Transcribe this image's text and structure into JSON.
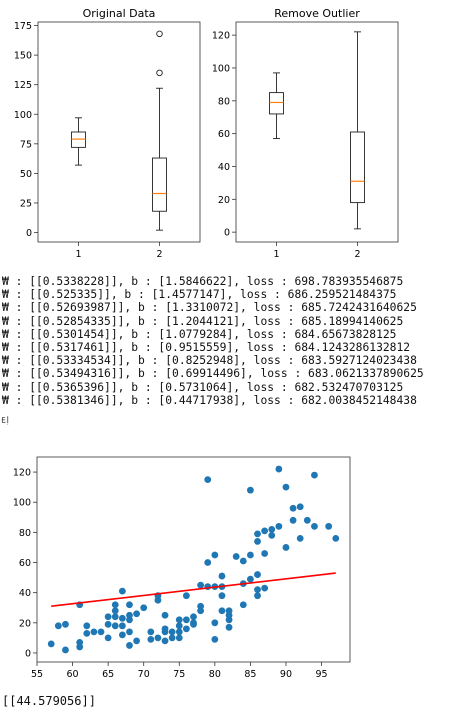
{
  "chart_data": [
    {
      "type": "box",
      "title": "Original Data",
      "categories": [
        "1",
        "2"
      ],
      "ylim": [
        -8,
        178
      ],
      "yticks": [
        0,
        25,
        50,
        75,
        100,
        125,
        150,
        175
      ],
      "boxes": [
        {
          "min": 57,
          "q1": 72,
          "median": 79,
          "q3": 85,
          "max": 97,
          "outliers": []
        },
        {
          "min": 2,
          "q1": 18,
          "median": 33,
          "q3": 63,
          "max": 122,
          "outliers": [
            135,
            168
          ]
        }
      ]
    },
    {
      "type": "box",
      "title": "Remove Outlier",
      "categories": [
        "1",
        "2"
      ],
      "ylim": [
        -6,
        128
      ],
      "yticks": [
        0,
        20,
        40,
        60,
        80,
        100,
        120
      ],
      "boxes": [
        {
          "min": 57,
          "q1": 72,
          "median": 79,
          "q3": 85,
          "max": 97,
          "outliers": []
        },
        {
          "min": 2,
          "q1": 18,
          "median": 31,
          "q3": 61,
          "max": 122,
          "outliers": []
        }
      ]
    },
    {
      "type": "scatter",
      "xlim": [
        55,
        99
      ],
      "ylim": [
        -6,
        130
      ],
      "xticks": [
        55,
        60,
        65,
        70,
        75,
        80,
        85,
        90,
        95
      ],
      "yticks": [
        0,
        20,
        40,
        60,
        80,
        100,
        120
      ],
      "points": [
        [
          57,
          6
        ],
        [
          58,
          18
        ],
        [
          59,
          19
        ],
        [
          59,
          2
        ],
        [
          61,
          32
        ],
        [
          61,
          7
        ],
        [
          61,
          4
        ],
        [
          62,
          18
        ],
        [
          62,
          13
        ],
        [
          63,
          14
        ],
        [
          64,
          14
        ],
        [
          65,
          24
        ],
        [
          65,
          19
        ],
        [
          65,
          10
        ],
        [
          66,
          32
        ],
        [
          66,
          18
        ],
        [
          66,
          24
        ],
        [
          66,
          28
        ],
        [
          67,
          41
        ],
        [
          67,
          23
        ],
        [
          67,
          18
        ],
        [
          67,
          12
        ],
        [
          68,
          22
        ],
        [
          68,
          25
        ],
        [
          68,
          32
        ],
        [
          68,
          14
        ],
        [
          68,
          5
        ],
        [
          69,
          26
        ],
        [
          69,
          8
        ],
        [
          70,
          30
        ],
        [
          71,
          14
        ],
        [
          71,
          9
        ],
        [
          72,
          10
        ],
        [
          72,
          35
        ],
        [
          72,
          38
        ],
        [
          73,
          14
        ],
        [
          73,
          16
        ],
        [
          73,
          8
        ],
        [
          73,
          25
        ],
        [
          74,
          14
        ],
        [
          74,
          10
        ],
        [
          75,
          14
        ],
        [
          75,
          10
        ],
        [
          75,
          18
        ],
        [
          75,
          22
        ],
        [
          76,
          22
        ],
        [
          76,
          38
        ],
        [
          76,
          16
        ],
        [
          77,
          19
        ],
        [
          77,
          24
        ],
        [
          77,
          20
        ],
        [
          78,
          28
        ],
        [
          78,
          45
        ],
        [
          78,
          31
        ],
        [
          79,
          44
        ],
        [
          79,
          115
        ],
        [
          79,
          60
        ],
        [
          80,
          65
        ],
        [
          80,
          44
        ],
        [
          80,
          20
        ],
        [
          80,
          9
        ],
        [
          81,
          38
        ],
        [
          81,
          44
        ],
        [
          81,
          51
        ],
        [
          81,
          28
        ],
        [
          82,
          28
        ],
        [
          82,
          22
        ],
        [
          82,
          25
        ],
        [
          82,
          17
        ],
        [
          83,
          64
        ],
        [
          84,
          61
        ],
        [
          84,
          32
        ],
        [
          84,
          46
        ],
        [
          85,
          65
        ],
        [
          85,
          49
        ],
        [
          85,
          108
        ],
        [
          86,
          52
        ],
        [
          86,
          42
        ],
        [
          86,
          74
        ],
        [
          86,
          79
        ],
        [
          86,
          38
        ],
        [
          87,
          66
        ],
        [
          87,
          81
        ],
        [
          87,
          43
        ],
        [
          88,
          82
        ],
        [
          88,
          78
        ],
        [
          89,
          122
        ],
        [
          89,
          84
        ],
        [
          90,
          110
        ],
        [
          90,
          70
        ],
        [
          91,
          96
        ],
        [
          91,
          88
        ],
        [
          92,
          97
        ],
        [
          92,
          76
        ],
        [
          93,
          88
        ],
        [
          94,
          84
        ],
        [
          94,
          118
        ],
        [
          96,
          84
        ],
        [
          97,
          76
        ]
      ],
      "regression_line": {
        "x": [
          57,
          97
        ],
        "y": [
          31,
          53
        ],
        "color": "#ff0000"
      }
    }
  ],
  "colors": {
    "box": "#222222",
    "median": "#ff7f0e",
    "points": "#1f77b4",
    "line": "#ff0000"
  },
  "log_lines": [
    "₩ : [[0.5338228]], b : [1.5846622], loss : 698.783935546875",
    "₩ : [[0.525335]], b : [1.4577147], loss : 686.259521484375",
    "₩ : [[0.52693987]], b : [1.3310072], loss : 685.7242431640625",
    "₩ : [[0.52854335]], b : [1.2044121], loss : 685.18994140625",
    "₩ : [[0.5301454]], b : [1.0779284], loss : 684.65673828125",
    "₩ : [[0.5317461]], b : [0.9515559], loss : 684.1243286132812",
    "₩ : [[0.53334534]], b : [0.8252948], loss : 683.5927124023438",
    "₩ : [[0.53494316]], b : [0.69914496], loss : 683.0621337890625",
    "₩ : [[0.5365396]], b : [0.5731064], loss : 682.532470703125",
    "₩ : [[0.5381346]], b : [0.44717938], loss : 682.0038452148438"
  ],
  "side_label": "ᄐᆝ",
  "final_output": "[[44.579056]]"
}
